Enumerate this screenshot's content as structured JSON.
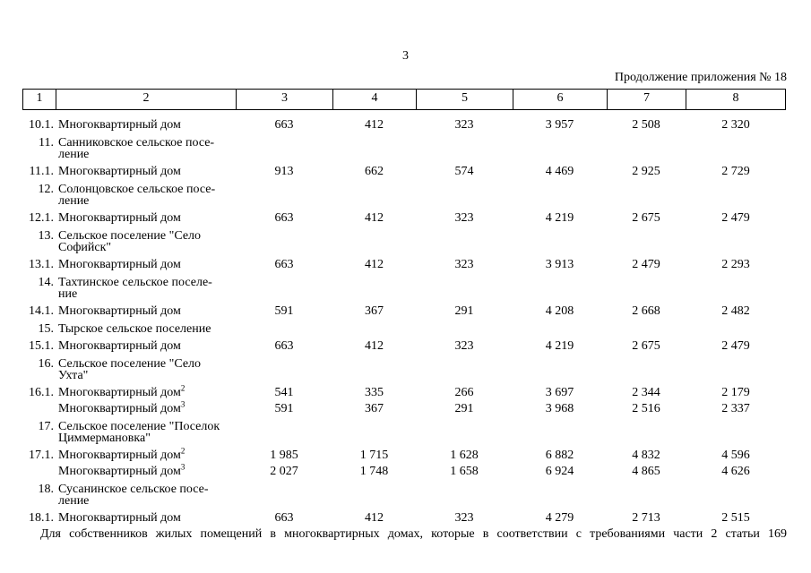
{
  "page": {
    "number": "3",
    "continuation": "Продолжение приложения № 18",
    "footer": "Для собственников жилых помещений в многоквартирных домах, которые в соответствии с требованиями части 2 статьи 169"
  },
  "table": {
    "header": [
      "1",
      "2",
      "3",
      "4",
      "5",
      "6",
      "7",
      "8"
    ],
    "header_col_widths": [
      37,
      201,
      108,
      93,
      108,
      105,
      88,
      112
    ],
    "value_col_widths": [
      108,
      93,
      108,
      105,
      88,
      112
    ],
    "rows": [
      {
        "kind": "unit",
        "num": "10.1.",
        "label": "Многоквартирный дом",
        "sup": "",
        "cells": [
          "663",
          "412",
          "323",
          "3 957",
          "2 508",
          "2 320"
        ]
      },
      {
        "kind": "group",
        "num": "11.",
        "label": "Санниковское сельское посе-\nление",
        "sup": "",
        "cells": []
      },
      {
        "kind": "unit",
        "num": "11.1.",
        "label": "Многоквартирный дом",
        "sup": "",
        "cells": [
          "913",
          "662",
          "574",
          "4 469",
          "2 925",
          "2 729"
        ]
      },
      {
        "kind": "group",
        "num": "12.",
        "label": "Солонцовское сельское посе-\nление",
        "sup": "",
        "cells": []
      },
      {
        "kind": "unit",
        "num": "12.1.",
        "label": "Многоквартирный дом",
        "sup": "",
        "cells": [
          "663",
          "412",
          "323",
          "4 219",
          "2 675",
          "2 479"
        ]
      },
      {
        "kind": "group",
        "num": "13.",
        "label": "Сельское поселение \"Село\nСофийск\"",
        "sup": "",
        "cells": []
      },
      {
        "kind": "unit",
        "num": "13.1.",
        "label": "Многоквартирный дом",
        "sup": "",
        "cells": [
          "663",
          "412",
          "323",
          "3 913",
          "2 479",
          "2 293"
        ]
      },
      {
        "kind": "group",
        "num": "14.",
        "label": "Тахтинское сельское поселе-\nние",
        "sup": "",
        "cells": []
      },
      {
        "kind": "unit",
        "num": "14.1.",
        "label": "Многоквартирный дом",
        "sup": "",
        "cells": [
          "591",
          "367",
          "291",
          "4 208",
          "2 668",
          "2 482"
        ]
      },
      {
        "kind": "group",
        "num": "15.",
        "label": "Тырское сельское поселение",
        "sup": "",
        "cells": []
      },
      {
        "kind": "unit",
        "num": "15.1.",
        "label": "Многоквартирный дом",
        "sup": "",
        "cells": [
          "663",
          "412",
          "323",
          "4 219",
          "2 675",
          "2 479"
        ]
      },
      {
        "kind": "group",
        "num": "16.",
        "label": "Сельское поселение \"Село\nУхта\"",
        "sup": "",
        "cells": []
      },
      {
        "kind": "unit",
        "num": "16.1.",
        "label": "Многоквартирный дом",
        "sup": "2",
        "cells": [
          "541",
          "335",
          "266",
          "3 697",
          "2 344",
          "2 179"
        ]
      },
      {
        "kind": "unit-sub",
        "num": "",
        "label": "Многоквартирный дом",
        "sup": "3",
        "cells": [
          "591",
          "367",
          "291",
          "3 968",
          "2 516",
          "2 337"
        ]
      },
      {
        "kind": "group",
        "num": "17.",
        "label": "Сельское поселение \"Поселок\nЦиммермановка\"",
        "sup": "",
        "cells": []
      },
      {
        "kind": "unit",
        "num": "17.1.",
        "label": "Многоквартирный дом",
        "sup": "2",
        "cells": [
          "1 985",
          "1 715",
          "1 628",
          "6 882",
          "4 832",
          "4 596"
        ]
      },
      {
        "kind": "unit-sub",
        "num": "",
        "label": "Многоквартирный дом",
        "sup": "3",
        "cells": [
          "2 027",
          "1 748",
          "1 658",
          "6 924",
          "4 865",
          "4 626"
        ]
      },
      {
        "kind": "group",
        "num": "18.",
        "label": "Сусанинское сельское посе-\nление",
        "sup": "",
        "cells": []
      },
      {
        "kind": "unit",
        "num": "18.1.",
        "label": "Многоквартирный дом",
        "sup": "",
        "cells": [
          "663",
          "412",
          "323",
          "4 279",
          "2 713",
          "2 515"
        ]
      }
    ]
  }
}
